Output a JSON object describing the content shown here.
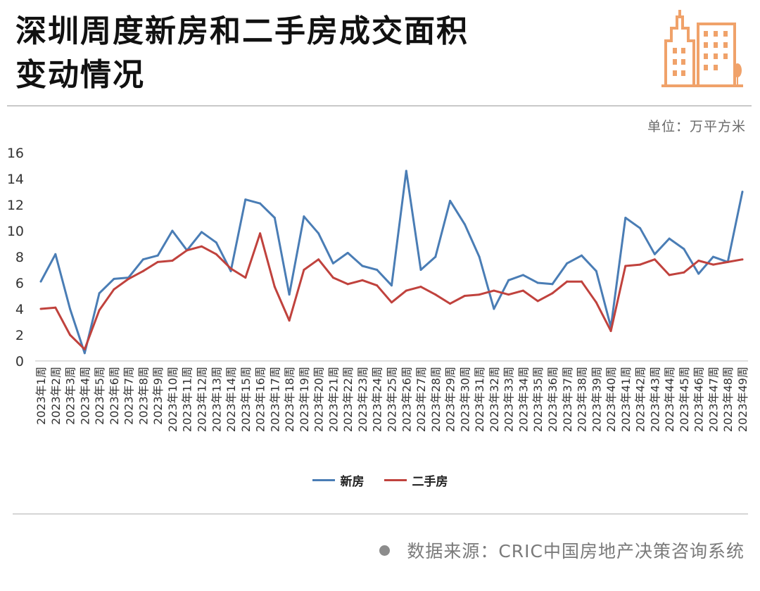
{
  "header": {
    "title_line1": "深圳周度新房和二手房成交面积",
    "title_line2": "变动情况",
    "unit": "单位：万平方米",
    "icon": "building-icon",
    "icon_color": "#f0a26a"
  },
  "footer": {
    "source": "数据来源：CRIC中国房地产决策咨询系统"
  },
  "chart_data": {
    "type": "line",
    "title": "深圳周度新房和二手房成交面积变动情况",
    "ylabel": "",
    "xlabel": "",
    "ylim": [
      0,
      16
    ],
    "yticks": [
      0,
      2,
      4,
      6,
      8,
      10,
      12,
      14,
      16
    ],
    "grid": false,
    "legend_position": "bottom-center",
    "categories": [
      "2023年1周",
      "2023年2周",
      "2023年3周",
      "2023年4周",
      "2023年5周",
      "2023年6周",
      "2023年7周",
      "2023年8周",
      "2023年9周",
      "2023年10周",
      "2023年11周",
      "2023年12周",
      "2023年13周",
      "2023年14周",
      "2023年15周",
      "2023年16周",
      "2023年17周",
      "2023年18周",
      "2023年19周",
      "2023年20周",
      "2023年21周",
      "2023年22周",
      "2023年23周",
      "2023年24周",
      "2023年25周",
      "2023年26周",
      "2023年27周",
      "2023年28周",
      "2023年29周",
      "2023年30周",
      "2023年31周",
      "2023年32周",
      "2023年33周",
      "2023年34周",
      "2023年35周",
      "2023年36周",
      "2023年37周",
      "2023年38周",
      "2023年39周",
      "2023年40周",
      "2023年41周",
      "2023年42周",
      "2023年43周",
      "2023年44周",
      "2023年45周",
      "2023年46周",
      "2023年47周",
      "2023年48周",
      "2023年49周"
    ],
    "series": [
      {
        "name": "新房",
        "color": "#4a7db5",
        "values": [
          6.1,
          8.2,
          4.0,
          0.6,
          5.2,
          6.3,
          6.4,
          7.8,
          8.1,
          10.0,
          8.5,
          9.9,
          9.1,
          6.9,
          12.4,
          12.1,
          11.0,
          5.1,
          11.1,
          9.8,
          7.5,
          8.3,
          7.3,
          7.0,
          5.8,
          14.6,
          7.0,
          8.0,
          12.3,
          10.5,
          8.0,
          4.0,
          6.2,
          6.6,
          6.0,
          5.9,
          7.5,
          8.1,
          6.9,
          2.6,
          11.0,
          10.2,
          8.2,
          9.4,
          8.6,
          6.7,
          8.0,
          7.6,
          13.0
        ]
      },
      {
        "name": "二手房",
        "color": "#c0423d",
        "values": [
          4.0,
          4.1,
          2.0,
          0.9,
          3.9,
          5.5,
          6.3,
          6.9,
          7.6,
          7.7,
          8.5,
          8.8,
          8.2,
          7.1,
          6.4,
          9.8,
          5.7,
          3.1,
          7.0,
          7.8,
          6.4,
          5.9,
          6.2,
          5.8,
          4.5,
          5.4,
          5.7,
          5.1,
          4.4,
          5.0,
          5.1,
          5.4,
          5.1,
          5.4,
          4.6,
          5.2,
          6.1,
          6.1,
          4.5,
          2.3,
          7.3,
          7.4,
          7.8,
          6.6,
          6.8,
          7.7,
          7.4,
          7.6,
          7.8
        ]
      }
    ]
  }
}
